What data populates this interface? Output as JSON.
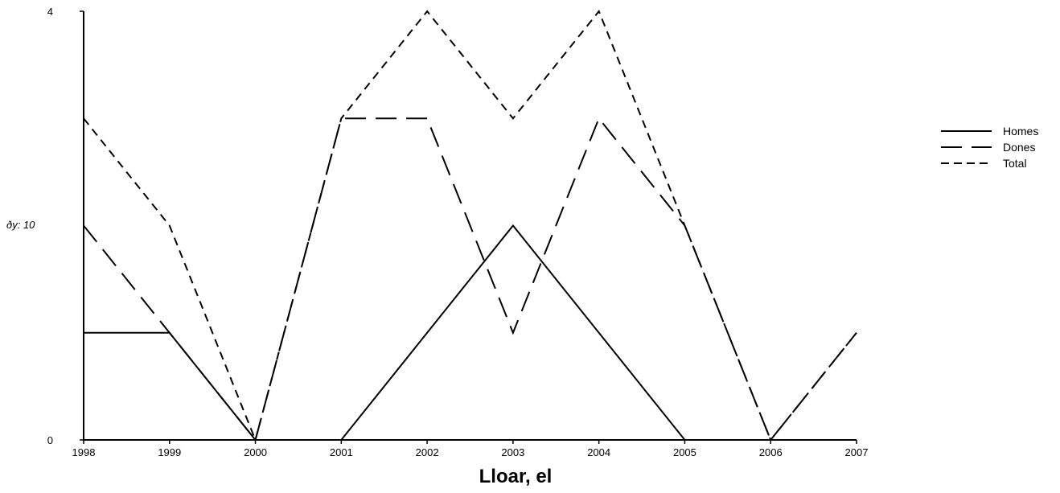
{
  "chart_data": {
    "type": "line",
    "x": [
      "1998",
      "1999",
      "2000",
      "2001",
      "2002",
      "2003",
      "2004",
      "2005",
      "2006",
      "2007"
    ],
    "series": [
      {
        "name": "Homes",
        "values": [
          1,
          1,
          0,
          0,
          1,
          2,
          1,
          0,
          0,
          null
        ],
        "dash": "solid",
        "color": "#000000"
      },
      {
        "name": "Dones",
        "values": [
          2,
          1,
          0,
          3,
          3,
          1,
          3,
          2,
          0,
          1
        ],
        "dash": "long-dash",
        "color": "#000000"
      },
      {
        "name": "Total",
        "values": [
          3,
          2,
          0,
          3,
          4,
          3,
          4,
          2,
          0,
          1
        ],
        "dash": "short-dash",
        "color": "#000000"
      }
    ],
    "xlabel": "Lloar, el",
    "ylabel": "ðy: 10",
    "ylim": [
      0,
      4
    ],
    "yticks": [
      "0",
      "4"
    ],
    "grid": false,
    "legend_position": "right"
  }
}
